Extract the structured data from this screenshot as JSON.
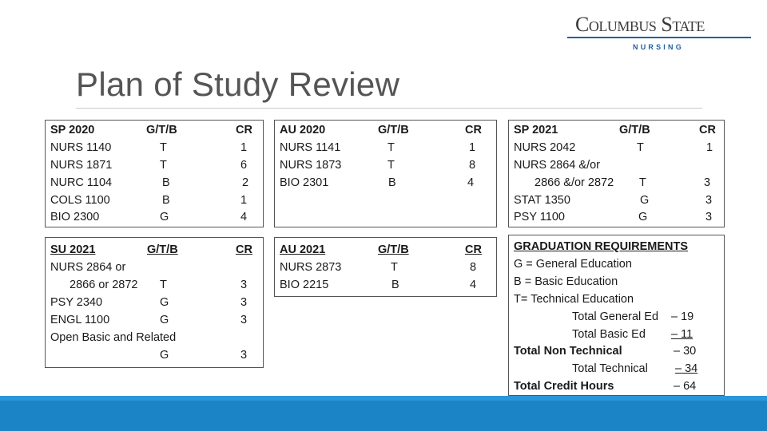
{
  "logo": {
    "main": "Columbus State",
    "sub": "NURSING"
  },
  "title": "Plan of Study Review",
  "sp2020": {
    "header": {
      "term": "SP 2020",
      "gtb": "G/T/B",
      "cr": "CR"
    },
    "rows": [
      {
        "course": "NURS 1140",
        "gtb": "T",
        "cr": "1"
      },
      {
        "course": "NURS 1871",
        "gtb": "T",
        "cr": "6"
      },
      {
        "course": "NURC 1104",
        "gtb": "B",
        "cr": "2"
      },
      {
        "course": "COLS 1100",
        "gtb": "B",
        "cr": "1"
      },
      {
        "course": "BIO 2300",
        "gtb": "G",
        "cr": "4"
      }
    ]
  },
  "au2020": {
    "header": {
      "term": "AU 2020",
      "gtb": "G/T/B",
      "cr": "CR"
    },
    "rows": [
      {
        "course": "NURS 1141",
        "gtb": "T",
        "cr": "1"
      },
      {
        "course": "NURS 1873",
        "gtb": "T",
        "cr": "8"
      },
      {
        "course": "BIO 2301",
        "gtb": "B",
        "cr": "4"
      }
    ]
  },
  "sp2021": {
    "header": {
      "term": "SP 2021",
      "gtb": "G/T/B",
      "cr": "CR"
    },
    "rows": [
      {
        "course": "NURS 2042",
        "gtb": "T",
        "cr": "1"
      },
      {
        "course": "NURS 2864 &/or",
        "gtb": "",
        "cr": ""
      },
      {
        "course": "2866 &/or 2872",
        "gtb": "T",
        "cr": "3"
      },
      {
        "course": "STAT 1350",
        "gtb": "G",
        "cr": "3"
      },
      {
        "course": "PSY 1100",
        "gtb": "G",
        "cr": "3"
      }
    ]
  },
  "su2021": {
    "header": {
      "term": "SU 2021",
      "gtb": "G/T/B",
      "cr": "CR"
    },
    "rows": [
      {
        "course": "NURS 2864 or",
        "gtb": "",
        "cr": ""
      },
      {
        "course": "2866 or 2872",
        "gtb": "T",
        "cr": "3"
      },
      {
        "course": "PSY 2340",
        "gtb": "G",
        "cr": "3"
      },
      {
        "course": "ENGL 1100",
        "gtb": "G",
        "cr": "3"
      },
      {
        "course": "Open Basic and Related",
        "gtb": "",
        "cr": ""
      },
      {
        "course": "",
        "gtb": "G",
        "cr": "3"
      }
    ]
  },
  "au2021": {
    "header": {
      "term": "AU 2021",
      "gtb": "G/T/B",
      "cr": "CR"
    },
    "rows": [
      {
        "course": "NURS 2873",
        "gtb": "T",
        "cr": "8"
      },
      {
        "course": "BIO 2215",
        "gtb": "B",
        "cr": "4"
      }
    ]
  },
  "grad": {
    "heading": "GRADUATION REQUIREMENTS",
    "legend_g": "G = General Education",
    "legend_b": "B = Basic Education",
    "legend_t": "T= Technical Education",
    "totals": [
      {
        "label": "Total General Ed",
        "value": "– 19"
      },
      {
        "label": "Total Basic Ed",
        "value": "– 11"
      },
      {
        "label": "Total Non Technical",
        "value": "– 30"
      },
      {
        "label": "Total Technical",
        "value": "– 34"
      },
      {
        "label": "Total Credit Hours",
        "value": "– 64"
      }
    ]
  }
}
